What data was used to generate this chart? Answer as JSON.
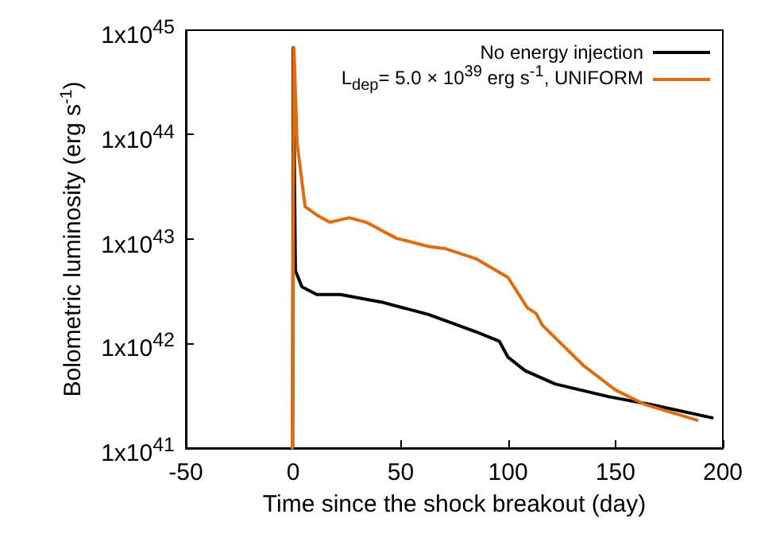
{
  "chart_data": {
    "type": "line",
    "xlabel": "Time since the shock breakout (day)",
    "ylabel": "Bolometric luminosity (erg s$^{-1}$)",
    "log": "y",
    "xlim": [
      -50,
      200
    ],
    "xticks": [
      -50,
      0,
      50,
      100,
      150,
      200
    ],
    "ylim": [
      1e+41,
      1e+45
    ],
    "yticks": [
      {
        "value": 1e+41,
        "label": "1x10$^{41}$"
      },
      {
        "value": 1e+42,
        "label": "1x10$^{42}$"
      },
      {
        "value": 1e+43,
        "label": "1x10$^{43}$"
      },
      {
        "value": 1e+44,
        "label": "1x10$^{44}$"
      },
      {
        "value": 1e+45,
        "label": "1x10$^{45}$"
      }
    ],
    "grid": false,
    "legend": "top right",
    "marker": "none",
    "line_style": "solid",
    "series": [
      {
        "name": "No energy injection",
        "color": "#000000",
        "x": [
          -0.3,
          0,
          1,
          4,
          11,
          22,
          41,
          63,
          85,
          96,
          100,
          108,
          122,
          147,
          167,
          195
        ],
        "values": [
          1e+41,
          6.8e+44,
          5e+42,
          3.5e+42,
          2.95e+42,
          2.95e+42,
          2.5e+42,
          1.9e+42,
          1.3e+42,
          1.05e+42,
          7.4e+41,
          5.5e+41,
          4.1e+41,
          3.1e+41,
          2.6e+41,
          1.95e+41
        ]
      },
      {
        "name": "L$_{dep}$= 5.0 × 10$^{39}$ erg s$^{-1}$, UNIFORM",
        "color": "#e06c10",
        "x": [
          -0.4,
          0.3,
          1.8,
          5.5,
          11,
          17,
          26,
          34,
          48,
          63,
          71,
          85,
          100,
          109,
          113,
          116,
          135,
          150,
          164,
          188
        ],
        "values": [
          1e+41,
          6.8e+44,
          8.3e+43,
          2.05e+43,
          1.7e+43,
          1.45e+43,
          1.6e+43,
          1.45e+43,
          1.02e+43,
          8.5e+42,
          8.1e+42,
          6.5e+42,
          4.3e+42,
          2.2e+42,
          1.95e+42,
          1.5e+42,
          6.2e+41,
          3.6e+41,
          2.6e+41,
          1.85e+41
        ]
      }
    ]
  }
}
